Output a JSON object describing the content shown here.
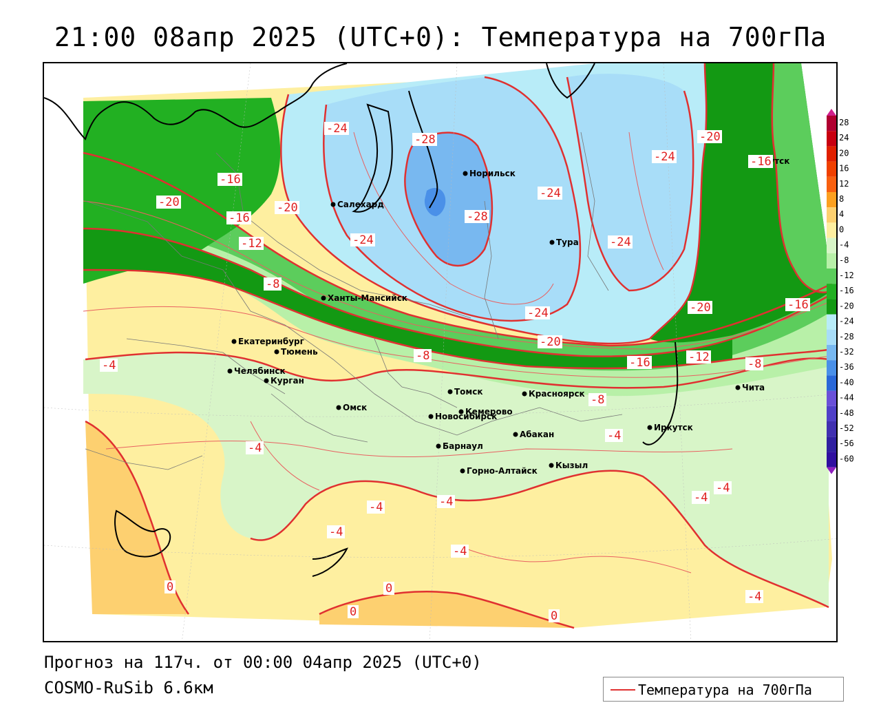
{
  "title": "21:00 08апр 2025 (UTC+0): Температура на 700гПа",
  "footer": {
    "forecast": "Прогноз на 117ч. от 00:00 04апр 2025 (UTC+0)",
    "model": "COSMO-RuSib 6.6км"
  },
  "legend": {
    "label": "Температура на 700гПа",
    "color": "#e03030"
  },
  "scale": {
    "values": [
      "28",
      "24",
      "20",
      "16",
      "12",
      "8",
      "4",
      "0",
      "-4",
      "-8",
      "-12",
      "-16",
      "-20",
      "-24",
      "-28",
      "-32",
      "-36",
      "-40",
      "-44",
      "-48",
      "-52",
      "-56",
      "-60"
    ],
    "colors": [
      "#b00030",
      "#c80010",
      "#e02000",
      "#f04000",
      "#f86010",
      "#fca020",
      "#fdd070",
      "#feefa0",
      "#d8f5c8",
      "#b8f0a8",
      "#5ccd5c",
      "#22b022",
      "#139913",
      "#b8ecf8",
      "#a8ddf8",
      "#78b8f0",
      "#4a90e8",
      "#2a68d8",
      "#6a50d8",
      "#5040c8",
      "#4030b0",
      "#3020a0",
      "#3010a0"
    ]
  },
  "cities": [
    {
      "name": "Якутск"
    },
    {
      "name": "Норильск"
    },
    {
      "name": "Салехард"
    },
    {
      "name": "Тура"
    },
    {
      "name": "Ханты-Мансийск"
    },
    {
      "name": "Екатеринбург"
    },
    {
      "name": "Тюмень"
    },
    {
      "name": "Челябинск"
    },
    {
      "name": "Курган"
    },
    {
      "name": "Томск"
    },
    {
      "name": "Красноярск"
    },
    {
      "name": "Омск"
    },
    {
      "name": "Новосибирск"
    },
    {
      "name": "Кемерово"
    },
    {
      "name": "Абакан"
    },
    {
      "name": "Барнаул"
    },
    {
      "name": "Горно-Алтайск"
    },
    {
      "name": "Кызыл"
    },
    {
      "name": "Иркутск"
    },
    {
      "name": "Чита"
    }
  ],
  "isotherm_labels": [
    "-24",
    "-28",
    "-28",
    "-20",
    "-16",
    "-24",
    "-24",
    "-24",
    "-16",
    "-20",
    "-16",
    "-20",
    "-12",
    "-24",
    "-24",
    "-8",
    "-20",
    "-20",
    "-8",
    "-16",
    "-12",
    "-16",
    "-8",
    "-4",
    "-8",
    "-4",
    "-4",
    "-4",
    "-4",
    "-4",
    "-4",
    "-4",
    "-4",
    "0",
    "0",
    "0",
    "0",
    "-4"
  ]
}
